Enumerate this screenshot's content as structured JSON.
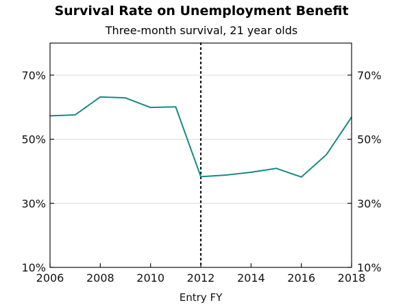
{
  "chart_data": {
    "type": "line",
    "title": "Survival Rate on Unemployment Benefit",
    "subtitle": "Three-month survival, 21 year olds",
    "xlabel": "Entry FY",
    "ylabel": "",
    "x": [
      2006,
      2007,
      2008,
      2009,
      2010,
      2011,
      2012,
      2013,
      2014,
      2015,
      2016,
      2017,
      2018
    ],
    "series": [
      {
        "values": [
          57.3,
          57.6,
          63.2,
          62.9,
          59.9,
          60.1,
          38.3,
          38.8,
          39.7,
          40.9,
          38.2,
          45.2,
          56.9
        ]
      }
    ],
    "xlim": [
      2006,
      2018
    ],
    "ylim": [
      10,
      80
    ],
    "x_ticks": [
      "2006",
      "2008",
      "2010",
      "2012",
      "2014",
      "2016",
      "2018"
    ],
    "y_ticks_left": [
      "10%",
      "30%",
      "50%",
      "70%"
    ],
    "y_ticks_right": [
      "10%",
      "30%",
      "50%",
      "70%"
    ],
    "y_tick_values": [
      10,
      30,
      50,
      70
    ],
    "vertical_line_x": 2012,
    "grid": "horizontal",
    "line_color": "#138a84",
    "grid_color": "#dcdcdc"
  }
}
